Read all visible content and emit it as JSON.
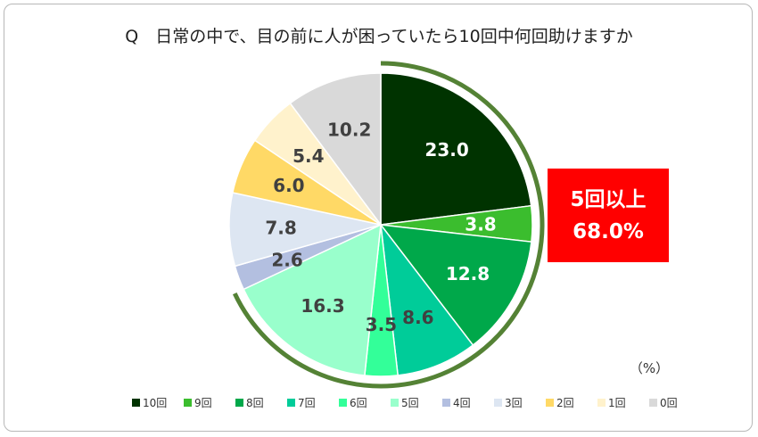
{
  "chart_data": {
    "type": "pie",
    "title": "Q　日常の中で、目の前に人が困っていたら10回中何回助けますか",
    "unit_label": "（%）",
    "categories": [
      "10回",
      "9回",
      "8回",
      "7回",
      "6回",
      "5回",
      "4回",
      "3回",
      "2回",
      "1回",
      "0回"
    ],
    "values": [
      23.0,
      3.8,
      12.8,
      8.6,
      3.5,
      16.3,
      2.6,
      7.8,
      6.0,
      5.4,
      10.2
    ],
    "value_labels": [
      "23.0",
      "3.8",
      "12.8",
      "8.6",
      "3.5",
      "16.3",
      "2.6",
      "7.8",
      "6.0",
      "5.4",
      "10.2"
    ],
    "colors": [
      "#003300",
      "#3bbd2e",
      "#00a84a",
      "#00cc99",
      "#33ff99",
      "#99ffcc",
      "#b3bfe0",
      "#dde6f2",
      "#ffd966",
      "#fff2cc",
      "#d9d9d9"
    ],
    "label_colors": [
      "#ffffff",
      "#ffffff",
      "#ffffff",
      "#404040",
      "#404040",
      "#404040",
      "#404040",
      "#404040",
      "#404040",
      "#404040",
      "#404040"
    ],
    "start_angle_deg": 0,
    "direction": "clockwise",
    "legend_position": "bottom",
    "highlight": {
      "line1": "5回以上",
      "line2": "68.0%",
      "background": "#ff0000",
      "arc_color": "#548235"
    }
  }
}
